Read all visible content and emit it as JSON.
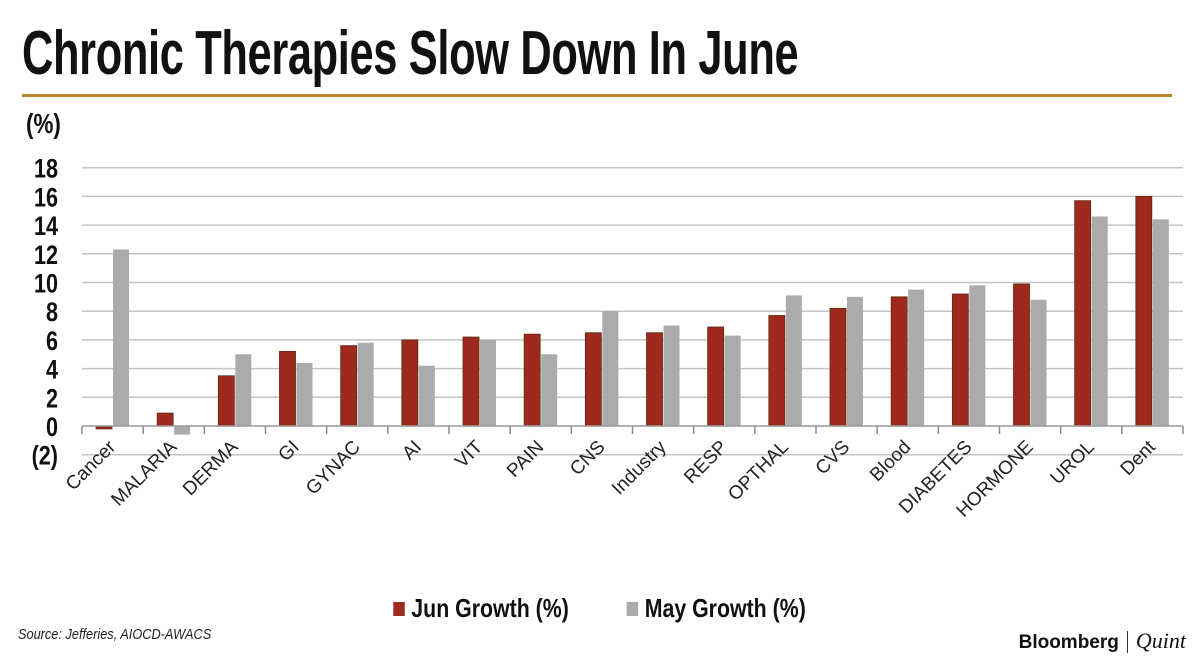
{
  "title": "Chronic Therapies Slow Down In June",
  "source": "Source: Jefferies, AIOCD-AWACS",
  "brand": {
    "name": "Bloomberg",
    "sub": "Quint"
  },
  "colors": {
    "jun": "#9e2a1e",
    "may": "#ababab",
    "rule": "#b8862b",
    "negative_label": "#b5361c"
  },
  "chart_data": {
    "type": "bar",
    "title": "Chronic Therapies Slow Down In June",
    "ylabel": "(%)",
    "xlabel": "",
    "ylim": [
      -2,
      18
    ],
    "yticks": [
      18,
      16,
      14,
      12,
      10,
      8,
      6,
      4,
      2,
      0,
      -2
    ],
    "ytick_labels": [
      "18",
      "16",
      "14",
      "12",
      "10",
      "8",
      "6",
      "4",
      "2",
      "0",
      "(2)"
    ],
    "grid": true,
    "legend": "bottom",
    "categories": [
      "Cancer",
      "MALARIA",
      "DERMA",
      "GI",
      "GYNAC",
      "AI",
      "VIT",
      "PAIN",
      "CNS",
      "Industry",
      "RESP",
      "OPTHAL",
      "CVS",
      "Blood",
      "DIABETES",
      "HORMONE",
      "UROL",
      "Dent"
    ],
    "series": [
      {
        "name": "Jun Growth (%)",
        "values": [
          -0.2,
          0.9,
          3.5,
          5.2,
          5.6,
          6.0,
          6.2,
          6.4,
          6.5,
          6.5,
          6.9,
          7.7,
          8.2,
          9.0,
          9.2,
          9.9,
          15.7,
          16.0
        ]
      },
      {
        "name": "May Growth (%)",
        "values": [
          12.3,
          -0.6,
          5.0,
          4.4,
          5.8,
          4.2,
          6.0,
          5.0,
          8.0,
          7.0,
          6.3,
          9.1,
          9.0,
          9.5,
          9.8,
          8.8,
          14.6,
          14.4
        ]
      }
    ]
  }
}
